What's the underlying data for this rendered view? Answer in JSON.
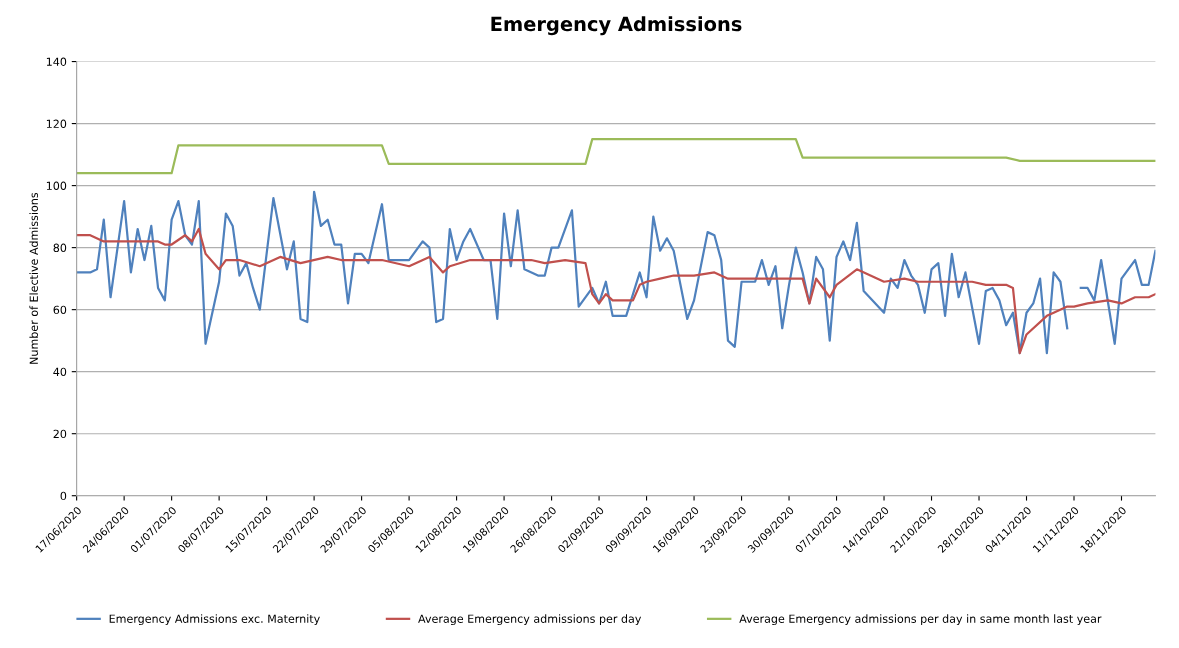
{
  "chart_data": {
    "type": "line",
    "title": "Emergency Admissions",
    "ylabel": "Number of Elective Admissions",
    "xlim": [
      "2020-06-17",
      "2020-11-23"
    ],
    "ylim": [
      0,
      140
    ],
    "yticks": [
      0,
      20,
      40,
      60,
      80,
      100,
      120,
      140
    ],
    "xticks": [
      {
        "value": "2020-06-17",
        "label": "17/06/2020"
      },
      {
        "value": "2020-06-24",
        "label": "24/06/2020"
      },
      {
        "value": "2020-07-01",
        "label": "01/07/2020"
      },
      {
        "value": "2020-07-08",
        "label": "08/07/2020"
      },
      {
        "value": "2020-07-15",
        "label": "15/07/2020"
      },
      {
        "value": "2020-07-22",
        "label": "22/07/2020"
      },
      {
        "value": "2020-07-29",
        "label": "29/07/2020"
      },
      {
        "value": "2020-08-05",
        "label": "05/08/2020"
      },
      {
        "value": "2020-08-12",
        "label": "12/08/2020"
      },
      {
        "value": "2020-08-19",
        "label": "19/08/2020"
      },
      {
        "value": "2020-08-26",
        "label": "26/08/2020"
      },
      {
        "value": "2020-09-02",
        "label": "02/09/2020"
      },
      {
        "value": "2020-09-09",
        "label": "09/09/2020"
      },
      {
        "value": "2020-09-16",
        "label": "16/09/2020"
      },
      {
        "value": "2020-09-23",
        "label": "23/09/2020"
      },
      {
        "value": "2020-09-30",
        "label": "30/09/2020"
      },
      {
        "value": "2020-10-07",
        "label": "07/10/2020"
      },
      {
        "value": "2020-10-14",
        "label": "14/10/2020"
      },
      {
        "value": "2020-10-21",
        "label": "21/10/2020"
      },
      {
        "value": "2020-10-28",
        "label": "28/10/2020"
      },
      {
        "value": "2020-11-04",
        "label": "04/11/2020"
      },
      {
        "value": "2020-11-11",
        "label": "11/11/2020"
      },
      {
        "value": "2020-11-18",
        "label": "18/11/2020"
      }
    ],
    "grid": "y",
    "legend": "bottom",
    "marker": "none",
    "line_style": "solid",
    "series": [
      {
        "name": "Emergency Admissions exc. Maternity",
        "color": "#4f81bd",
        "x": [
          "2020-06-17",
          "2020-06-19",
          "2020-06-20",
          "2020-06-21",
          "2020-06-22",
          "2020-06-24",
          "2020-06-25",
          "2020-06-26",
          "2020-06-27",
          "2020-06-28",
          "2020-06-29",
          "2020-06-30",
          "2020-07-01",
          "2020-07-02",
          "2020-07-03",
          "2020-07-04",
          "2020-07-05",
          "2020-07-06",
          "2020-07-08",
          "2020-07-09",
          "2020-07-10",
          "2020-07-11",
          "2020-07-12",
          "2020-07-13",
          "2020-07-14",
          "2020-07-16",
          "2020-07-18",
          "2020-07-19",
          "2020-07-20",
          "2020-07-21",
          "2020-07-22",
          "2020-07-23",
          "2020-07-24",
          "2020-07-25",
          "2020-07-26",
          "2020-07-27",
          "2020-07-28",
          "2020-07-29",
          "2020-07-30",
          "2020-08-01",
          "2020-08-02",
          "2020-08-03",
          "2020-08-05",
          "2020-08-07",
          "2020-08-08",
          "2020-08-09",
          "2020-08-10",
          "2020-08-11",
          "2020-08-12",
          "2020-08-13",
          "2020-08-14",
          "2020-08-16",
          "2020-08-17",
          "2020-08-18",
          "2020-08-19",
          "2020-08-20",
          "2020-08-21",
          "2020-08-22",
          "2020-08-24",
          "2020-08-25",
          "2020-08-26",
          "2020-08-27",
          "2020-08-29",
          "2020-08-30",
          "2020-09-01",
          "2020-09-02",
          "2020-09-03",
          "2020-09-04",
          "2020-09-06",
          "2020-09-08",
          "2020-09-09",
          "2020-09-10",
          "2020-09-11",
          "2020-09-12",
          "2020-09-13",
          "2020-09-15",
          "2020-09-16",
          "2020-09-18",
          "2020-09-19",
          "2020-09-20",
          "2020-09-21",
          "2020-09-22",
          "2020-09-23",
          "2020-09-25",
          "2020-09-26",
          "2020-09-27",
          "2020-09-28",
          "2020-09-29",
          "2020-09-30",
          "2020-10-01",
          "2020-10-02",
          "2020-10-03",
          "2020-10-04",
          "2020-10-05",
          "2020-10-06",
          "2020-10-07",
          "2020-10-08",
          "2020-10-09",
          "2020-10-10",
          "2020-10-11",
          "2020-10-14",
          "2020-10-15",
          "2020-10-16",
          "2020-10-17",
          "2020-10-18",
          "2020-10-19",
          "2020-10-20",
          "2020-10-21",
          "2020-10-22",
          "2020-10-23",
          "2020-10-24",
          "2020-10-25",
          "2020-10-26",
          "2020-10-28",
          "2020-10-29",
          "2020-10-30",
          "2020-10-31",
          "2020-11-01",
          "2020-11-02",
          "2020-11-03",
          "2020-11-04",
          "2020-11-05",
          "2020-11-06",
          "2020-11-07",
          "2020-11-08",
          "2020-11-09",
          "2020-11-10",
          "2020-11-11",
          "2020-11-12",
          "2020-11-13",
          "2020-11-14",
          "2020-11-15",
          "2020-11-17",
          "2020-11-18",
          "2020-11-20",
          "2020-11-21",
          "2020-11-22",
          "2020-11-23"
        ],
        "values": [
          72,
          72,
          73,
          89,
          64,
          95,
          72,
          86,
          76,
          87,
          67,
          63,
          89,
          95,
          84,
          81,
          95,
          49,
          69,
          91,
          87,
          71,
          75,
          67,
          60,
          96,
          73,
          82,
          57,
          56,
          98,
          87,
          89,
          81,
          81,
          62,
          78,
          78,
          75,
          94,
          76,
          76,
          76,
          82,
          80,
          56,
          57,
          86,
          76,
          82,
          86,
          76,
          76,
          57,
          91,
          74,
          92,
          73,
          71,
          71,
          80,
          80,
          92,
          61,
          67,
          62,
          69,
          58,
          58,
          72,
          64,
          90,
          79,
          83,
          79,
          57,
          63,
          85,
          84,
          76,
          50,
          48,
          69,
          69,
          76,
          68,
          74,
          54,
          68,
          80,
          72,
          62,
          77,
          73,
          50,
          77,
          82,
          76,
          88,
          66,
          59,
          70,
          67,
          76,
          71,
          68,
          59,
          73,
          75,
          58,
          78,
          64,
          72,
          49,
          66,
          67,
          63,
          55,
          59,
          46,
          59,
          62,
          70,
          46,
          72,
          69,
          54,
          null,
          67,
          67,
          63,
          76,
          49,
          70,
          76,
          68,
          68,
          79
        ]
      },
      {
        "name": "Average Emergency admissions per day",
        "color": "#c0504d",
        "x": [
          "2020-06-17",
          "2020-06-19",
          "2020-06-21",
          "2020-06-29",
          "2020-06-30",
          "2020-07-01",
          "2020-07-03",
          "2020-07-04",
          "2020-07-05",
          "2020-07-06",
          "2020-07-08",
          "2020-07-09",
          "2020-07-11",
          "2020-07-14",
          "2020-07-17",
          "2020-07-20",
          "2020-07-24",
          "2020-07-26",
          "2020-08-01",
          "2020-08-05",
          "2020-08-08",
          "2020-08-10",
          "2020-08-11",
          "2020-08-14",
          "2020-08-23",
          "2020-08-25",
          "2020-08-28",
          "2020-08-31",
          "2020-09-01",
          "2020-09-02",
          "2020-09-03",
          "2020-09-04",
          "2020-09-07",
          "2020-09-08",
          "2020-09-09",
          "2020-09-11",
          "2020-09-13",
          "2020-09-16",
          "2020-09-19",
          "2020-09-21",
          "2020-09-25",
          "2020-10-02",
          "2020-10-03",
          "2020-10-04",
          "2020-10-06",
          "2020-10-07",
          "2020-10-10",
          "2020-10-12",
          "2020-10-14",
          "2020-10-17",
          "2020-10-19",
          "2020-10-27",
          "2020-10-29",
          "2020-11-01",
          "2020-11-02",
          "2020-11-03",
          "2020-11-04",
          "2020-11-07",
          "2020-11-08",
          "2020-11-10",
          "2020-11-11",
          "2020-11-13",
          "2020-11-16",
          "2020-11-18",
          "2020-11-20",
          "2020-11-22",
          "2020-11-23"
        ],
        "values": [
          84,
          84,
          82,
          82,
          81,
          81,
          84,
          82,
          86,
          78,
          73,
          76,
          76,
          74,
          77,
          75,
          77,
          76,
          76,
          74,
          77,
          72,
          74,
          76,
          76,
          75,
          76,
          75,
          65,
          62,
          65,
          63,
          63,
          68,
          69,
          70,
          71,
          71,
          72,
          70,
          70,
          70,
          62,
          70,
          64,
          68,
          73,
          71,
          69,
          70,
          69,
          69,
          68,
          68,
          67,
          46,
          52,
          58,
          59,
          61,
          61,
          62,
          63,
          62,
          64,
          64,
          65
        ]
      },
      {
        "name": "Average Emergency admissions per day in same month last year",
        "color": "#9bbb59",
        "x": [
          "2020-06-17",
          "2020-07-01",
          "2020-07-02",
          "2020-08-01",
          "2020-08-02",
          "2020-08-31",
          "2020-09-01",
          "2020-10-01",
          "2020-10-02",
          "2020-11-01",
          "2020-11-03",
          "2020-11-23"
        ],
        "values": [
          104,
          104,
          113,
          113,
          107,
          107,
          115,
          115,
          109,
          109,
          108,
          108
        ]
      }
    ]
  }
}
